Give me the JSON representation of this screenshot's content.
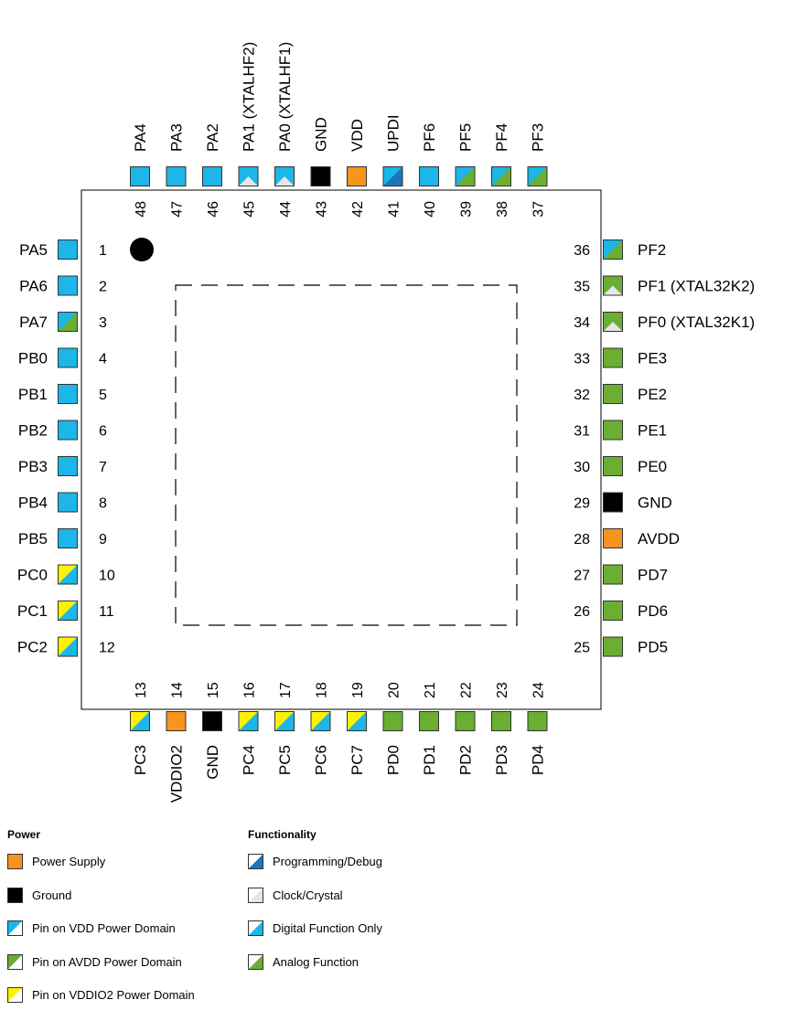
{
  "colors": {
    "vdd_domain": "#1cb6e8",
    "avdd_domain": "#6aae32",
    "vddio2_domain": "#fff200",
    "power": "#f7941d",
    "ground": "#000000",
    "programming": "#1b75bc",
    "clock": "#e6e6e6",
    "digital": "#1cb6e8",
    "analog": "#6aae32"
  },
  "package": {
    "pin1_marker": "filled-dot",
    "exposed_pad": "dashed-outline"
  },
  "pins": {
    "top": [
      {
        "num": "48",
        "name": "PA4",
        "base": "vdd_domain",
        "func": "digital"
      },
      {
        "num": "47",
        "name": "PA3",
        "base": "vdd_domain",
        "func": "digital"
      },
      {
        "num": "46",
        "name": "PA2",
        "base": "vdd_domain",
        "func": "digital"
      },
      {
        "num": "45",
        "name": "PA1 (XTALHF2)",
        "base": "vdd_domain",
        "func": "clock"
      },
      {
        "num": "44",
        "name": "PA0 (XTALHF1)",
        "base": "vdd_domain",
        "func": "clock"
      },
      {
        "num": "43",
        "name": "GND",
        "base": "ground",
        "func": null
      },
      {
        "num": "42",
        "name": "VDD",
        "base": "power",
        "func": null
      },
      {
        "num": "41",
        "name": "UPDI",
        "base": "vdd_domain",
        "func": "programming"
      },
      {
        "num": "40",
        "name": "PF6",
        "base": "vdd_domain",
        "func": "digital"
      },
      {
        "num": "39",
        "name": "PF5",
        "base": "vdd_domain",
        "func": "analog"
      },
      {
        "num": "38",
        "name": "PF4",
        "base": "vdd_domain",
        "func": "analog"
      },
      {
        "num": "37",
        "name": "PF3",
        "base": "vdd_domain",
        "func": "analog"
      }
    ],
    "left": [
      {
        "num": "1",
        "name": "PA5",
        "base": "vdd_domain",
        "func": "digital"
      },
      {
        "num": "2",
        "name": "PA6",
        "base": "vdd_domain",
        "func": "digital"
      },
      {
        "num": "3",
        "name": "PA7",
        "base": "vdd_domain",
        "func": "analog"
      },
      {
        "num": "4",
        "name": "PB0",
        "base": "vdd_domain",
        "func": "digital"
      },
      {
        "num": "5",
        "name": "PB1",
        "base": "vdd_domain",
        "func": "digital"
      },
      {
        "num": "6",
        "name": "PB2",
        "base": "vdd_domain",
        "func": "digital"
      },
      {
        "num": "7",
        "name": "PB3",
        "base": "vdd_domain",
        "func": "digital"
      },
      {
        "num": "8",
        "name": "PB4",
        "base": "vdd_domain",
        "func": "digital"
      },
      {
        "num": "9",
        "name": "PB5",
        "base": "vdd_domain",
        "func": "digital"
      },
      {
        "num": "10",
        "name": "PC0",
        "base": "vddio2_domain",
        "func": "digital"
      },
      {
        "num": "11",
        "name": "PC1",
        "base": "vddio2_domain",
        "func": "digital"
      },
      {
        "num": "12",
        "name": "PC2",
        "base": "vddio2_domain",
        "func": "digital"
      }
    ],
    "bottom": [
      {
        "num": "13",
        "name": "PC3",
        "base": "vddio2_domain",
        "func": "digital"
      },
      {
        "num": "14",
        "name": "VDDIO2",
        "base": "power",
        "func": null
      },
      {
        "num": "15",
        "name": "GND",
        "base": "ground",
        "func": null
      },
      {
        "num": "16",
        "name": "PC4",
        "base": "vddio2_domain",
        "func": "digital"
      },
      {
        "num": "17",
        "name": "PC5",
        "base": "vddio2_domain",
        "func": "digital"
      },
      {
        "num": "18",
        "name": "PC6",
        "base": "vddio2_domain",
        "func": "digital"
      },
      {
        "num": "19",
        "name": "PC7",
        "base": "vddio2_domain",
        "func": "digital"
      },
      {
        "num": "20",
        "name": "PD0",
        "base": "avdd_domain",
        "func": "analog"
      },
      {
        "num": "21",
        "name": "PD1",
        "base": "avdd_domain",
        "func": "analog"
      },
      {
        "num": "22",
        "name": "PD2",
        "base": "avdd_domain",
        "func": "analog"
      },
      {
        "num": "23",
        "name": "PD3",
        "base": "avdd_domain",
        "func": "analog"
      },
      {
        "num": "24",
        "name": "PD4",
        "base": "avdd_domain",
        "func": "analog"
      }
    ],
    "right": [
      {
        "num": "36",
        "name": "PF2",
        "base": "vdd_domain",
        "func": "analog"
      },
      {
        "num": "35",
        "name": "PF1 (XTAL32K2)",
        "base": "avdd_domain",
        "func": "clock"
      },
      {
        "num": "34",
        "name": "PF0 (XTAL32K1)",
        "base": "avdd_domain",
        "func": "clock"
      },
      {
        "num": "33",
        "name": "PE3",
        "base": "avdd_domain",
        "func": "analog"
      },
      {
        "num": "32",
        "name": "PE2",
        "base": "avdd_domain",
        "func": "analog"
      },
      {
        "num": "31",
        "name": "PE1",
        "base": "avdd_domain",
        "func": "analog"
      },
      {
        "num": "30",
        "name": "PE0",
        "base": "avdd_domain",
        "func": "analog"
      },
      {
        "num": "29",
        "name": "GND",
        "base": "ground",
        "func": null
      },
      {
        "num": "28",
        "name": "AVDD",
        "base": "power",
        "func": null
      },
      {
        "num": "27",
        "name": "PD7",
        "base": "avdd_domain",
        "func": "analog"
      },
      {
        "num": "26",
        "name": "PD6",
        "base": "avdd_domain",
        "func": "analog"
      },
      {
        "num": "25",
        "name": "PD5",
        "base": "avdd_domain",
        "func": "analog"
      }
    ]
  },
  "legend": {
    "power": {
      "title": "Power",
      "items": [
        {
          "label": "Power Supply",
          "base": "power",
          "func": null
        },
        {
          "label": "Ground",
          "base": "ground",
          "func": null
        },
        {
          "label": "Pin on VDD Power Domain",
          "base": "vdd_domain",
          "func": "white"
        },
        {
          "label": "Pin on AVDD Power Domain",
          "base": "avdd_domain",
          "func": "white"
        },
        {
          "label": "Pin on VDDIO2 Power Domain",
          "base": "vddio2_domain",
          "func": "white"
        }
      ]
    },
    "functionality": {
      "title": "Functionality",
      "items": [
        {
          "label": "Programming/Debug",
          "base": "white",
          "func": "programming"
        },
        {
          "label": "Clock/Crystal",
          "base": "white",
          "func": "clock"
        },
        {
          "label": "Digital Function Only",
          "base": "white",
          "func": "digital"
        },
        {
          "label": "Analog Function",
          "base": "white",
          "func": "analog"
        }
      ]
    }
  }
}
